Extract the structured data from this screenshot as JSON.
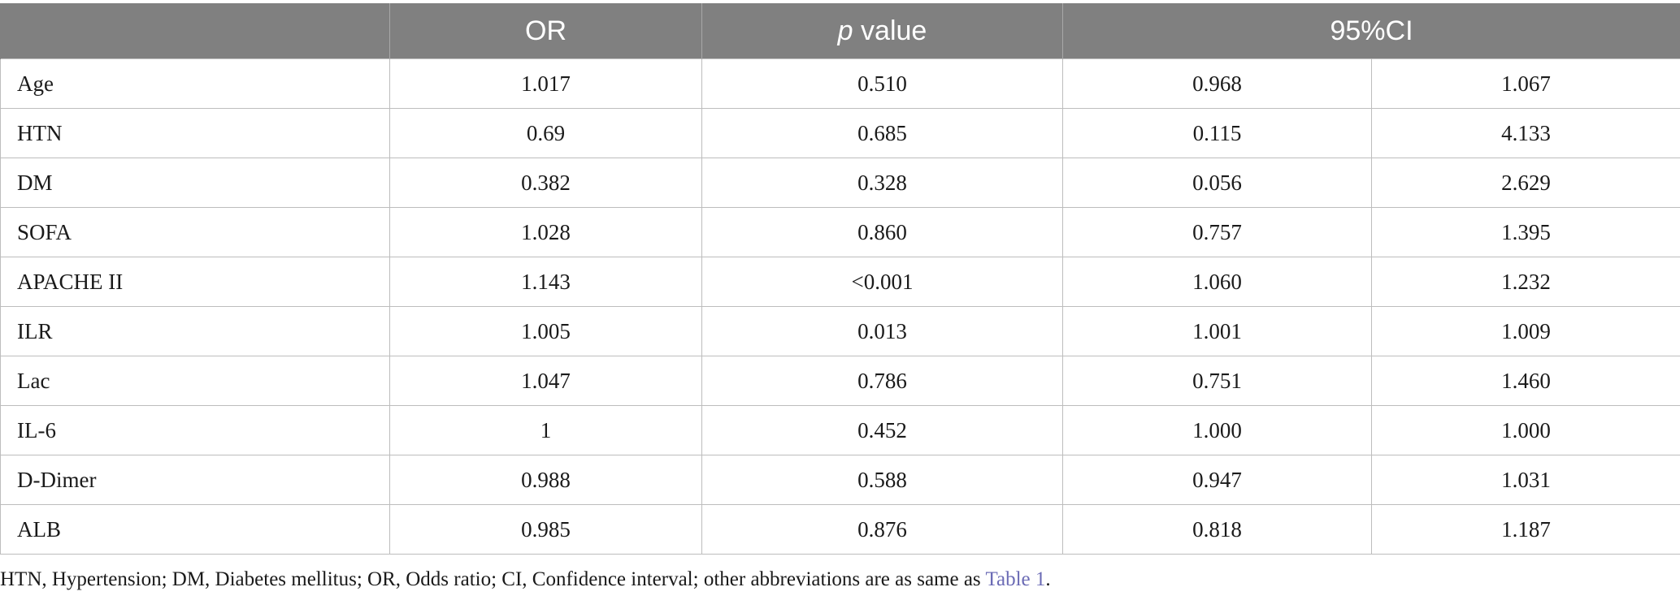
{
  "table": {
    "headers": {
      "blank": "",
      "or": "OR",
      "p_italic": "p",
      "p_rest": " value",
      "ci": "95%CI"
    },
    "rows": [
      {
        "label": "Age",
        "or": "1.017",
        "p": "0.510",
        "ci_low": "0.968",
        "ci_high": "1.067"
      },
      {
        "label": "HTN",
        "or": "0.69",
        "p": "0.685",
        "ci_low": "0.115",
        "ci_high": "4.133"
      },
      {
        "label": "DM",
        "or": "0.382",
        "p": "0.328",
        "ci_low": "0.056",
        "ci_high": "2.629"
      },
      {
        "label": "SOFA",
        "or": "1.028",
        "p": "0.860",
        "ci_low": "0.757",
        "ci_high": "1.395"
      },
      {
        "label": "APACHE II",
        "or": "1.143",
        "p": "<0.001",
        "ci_low": "1.060",
        "ci_high": "1.232"
      },
      {
        "label": "ILR",
        "or": "1.005",
        "p": "0.013",
        "ci_low": "1.001",
        "ci_high": "1.009"
      },
      {
        "label": "Lac",
        "or": "1.047",
        "p": "0.786",
        "ci_low": "0.751",
        "ci_high": "1.460"
      },
      {
        "label": "IL-6",
        "or": "1",
        "p": "0.452",
        "ci_low": "1.000",
        "ci_high": "1.000"
      },
      {
        "label": "D-Dimer",
        "or": "0.988",
        "p": "0.588",
        "ci_low": "0.947",
        "ci_high": "1.031"
      },
      {
        "label": "ALB",
        "or": "0.985",
        "p": "0.876",
        "ci_low": "0.818",
        "ci_high": "1.187"
      }
    ]
  },
  "footnote": {
    "text": "HTN, Hypertension; DM, Diabetes mellitus; OR, Odds ratio; CI, Confidence interval; other abbreviations are as same as ",
    "link": "Table 1",
    "end": "."
  },
  "colors": {
    "header_bg": "#808080",
    "header_text": "#ffffff",
    "link": "#6b6bb5"
  }
}
